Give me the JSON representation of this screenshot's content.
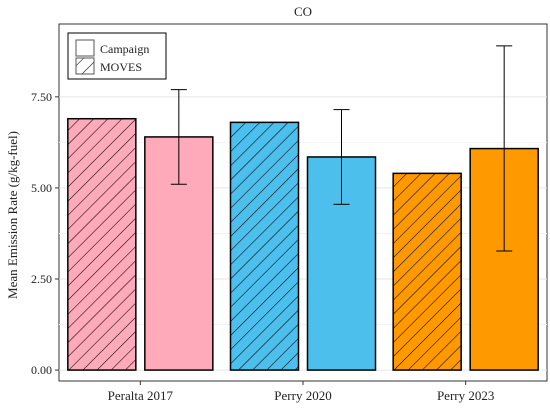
{
  "chart_data": {
    "type": "bar",
    "title": "CO",
    "xlabel": "",
    "ylabel": "Mean Emission Rate (g/kg-fuel)",
    "ylim": [
      -0.3,
      9.5
    ],
    "yticks": [
      "0.00",
      "2.50",
      "5.00",
      "7.50"
    ],
    "ytick_values": [
      0,
      2.5,
      5,
      7.5
    ],
    "categories": [
      "Peralta 2017",
      "Perry 2020",
      "Perry 2023"
    ],
    "category_colors": [
      "#ffaabb",
      "#4cbfec",
      "#ff9900"
    ],
    "series": [
      {
        "name": "MOVES",
        "values": [
          6.9,
          6.8,
          5.4
        ],
        "error": [
          null,
          null,
          null
        ],
        "pattern": "hatch"
      },
      {
        "name": "Campaign",
        "values": [
          6.4,
          5.85,
          6.08
        ],
        "error_low": [
          5.1,
          4.55,
          3.27
        ],
        "error_high": [
          7.7,
          7.15,
          8.9
        ],
        "pattern": "solid"
      }
    ],
    "legend": {
      "position": "top-left",
      "entries": [
        "Campaign",
        "MOVES"
      ]
    },
    "grid": true
  }
}
